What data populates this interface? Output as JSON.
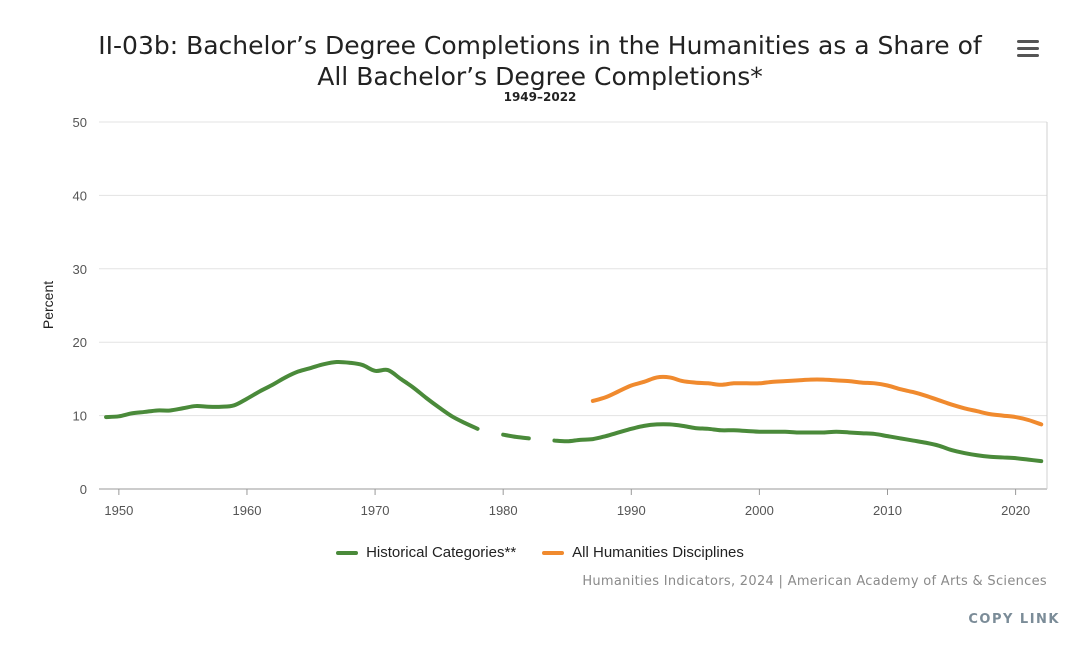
{
  "title_line1": "II-03b: Bachelor’s Degree Completions in the Humanities as a Share of",
  "title_line2": "All Bachelor’s Degree Completions*",
  "menu_icon": "hamburger-menu-icon",
  "credits": "Humanities Indicators, 2024 | American Academy of Arts & Sciences",
  "copy_link": "COPY LINK",
  "chart_data": {
    "type": "line",
    "title": "II-03b: Bachelor’s Degree Completions in the Humanities as a Share of All Bachelor’s Degree Completions*",
    "subtitle": "1949–2022",
    "xlabel": "",
    "ylabel": "Percent",
    "xlim": [
      1949,
      2022
    ],
    "ylim": [
      0,
      50
    ],
    "x_ticks": [
      1950,
      1960,
      1970,
      1980,
      1990,
      2000,
      2010,
      2020
    ],
    "y_ticks": [
      0,
      10,
      20,
      30,
      40,
      50
    ],
    "grid": "horizontal",
    "legend_position": "bottom-center",
    "series": [
      {
        "name": "Historical Categories**",
        "color": "#4a8a3a",
        "points": [
          [
            1949,
            9.8
          ],
          [
            1950,
            9.9
          ],
          [
            1951,
            10.3
          ],
          [
            1952,
            10.5
          ],
          [
            1953,
            10.7
          ],
          [
            1954,
            10.7
          ],
          [
            1955,
            11.0
          ],
          [
            1956,
            11.3
          ],
          [
            1957,
            11.2
          ],
          [
            1958,
            11.2
          ],
          [
            1959,
            11.4
          ],
          [
            1960,
            12.3
          ],
          [
            1961,
            13.3
          ],
          [
            1962,
            14.2
          ],
          [
            1963,
            15.2
          ],
          [
            1964,
            16.0
          ],
          [
            1965,
            16.5
          ],
          [
            1966,
            17.0
          ],
          [
            1967,
            17.3
          ],
          [
            1968,
            17.2
          ],
          [
            1969,
            16.9
          ],
          [
            1970,
            16.1
          ],
          [
            1971,
            16.2
          ],
          [
            1972,
            15.0
          ],
          [
            1973,
            13.8
          ],
          [
            1974,
            12.4
          ],
          [
            1975,
            11.1
          ],
          [
            1976,
            9.9
          ],
          [
            1977,
            9.0
          ],
          [
            1978,
            8.2
          ],
          null,
          [
            1980,
            7.4
          ],
          [
            1981,
            7.1
          ],
          [
            1982,
            6.9
          ],
          null,
          [
            1984,
            6.6
          ],
          [
            1985,
            6.5
          ],
          [
            1986,
            6.7
          ],
          [
            1987,
            6.8
          ],
          [
            1988,
            7.2
          ],
          [
            1989,
            7.7
          ],
          [
            1990,
            8.2
          ],
          [
            1991,
            8.6
          ],
          [
            1992,
            8.8
          ],
          [
            1993,
            8.8
          ],
          [
            1994,
            8.6
          ],
          [
            1995,
            8.3
          ],
          [
            1996,
            8.2
          ],
          [
            1997,
            8.0
          ],
          [
            1998,
            8.0
          ],
          [
            1999,
            7.9
          ],
          [
            2000,
            7.8
          ],
          [
            2001,
            7.8
          ],
          [
            2002,
            7.8
          ],
          [
            2003,
            7.7
          ],
          [
            2004,
            7.7
          ],
          [
            2005,
            7.7
          ],
          [
            2006,
            7.8
          ],
          [
            2007,
            7.7
          ],
          [
            2008,
            7.6
          ],
          [
            2009,
            7.5
          ],
          [
            2010,
            7.2
          ],
          [
            2011,
            6.9
          ],
          [
            2012,
            6.6
          ],
          [
            2013,
            6.3
          ],
          [
            2014,
            5.9
          ],
          [
            2015,
            5.3
          ],
          [
            2016,
            4.9
          ],
          [
            2017,
            4.6
          ],
          [
            2018,
            4.4
          ],
          [
            2019,
            4.3
          ],
          [
            2020,
            4.2
          ],
          [
            2021,
            4.0
          ],
          [
            2022,
            3.8
          ]
        ]
      },
      {
        "name": "All Humanities Disciplines",
        "color": "#f08a2e",
        "points": [
          [
            1987,
            12.0
          ],
          [
            1988,
            12.5
          ],
          [
            1989,
            13.3
          ],
          [
            1990,
            14.1
          ],
          [
            1991,
            14.6
          ],
          [
            1992,
            15.2
          ],
          [
            1993,
            15.2
          ],
          [
            1994,
            14.7
          ],
          [
            1995,
            14.5
          ],
          [
            1996,
            14.4
          ],
          [
            1997,
            14.2
          ],
          [
            1998,
            14.4
          ],
          [
            1999,
            14.4
          ],
          [
            2000,
            14.4
          ],
          [
            2001,
            14.6
          ],
          [
            2002,
            14.7
          ],
          [
            2003,
            14.8
          ],
          [
            2004,
            14.9
          ],
          [
            2005,
            14.9
          ],
          [
            2006,
            14.8
          ],
          [
            2007,
            14.7
          ],
          [
            2008,
            14.5
          ],
          [
            2009,
            14.4
          ],
          [
            2010,
            14.1
          ],
          [
            2011,
            13.6
          ],
          [
            2012,
            13.2
          ],
          [
            2013,
            12.7
          ],
          [
            2014,
            12.1
          ],
          [
            2015,
            11.5
          ],
          [
            2016,
            11.0
          ],
          [
            2017,
            10.6
          ],
          [
            2018,
            10.2
          ],
          [
            2019,
            10.0
          ],
          [
            2020,
            9.8
          ],
          [
            2021,
            9.4
          ],
          [
            2022,
            8.8
          ]
        ]
      }
    ]
  }
}
